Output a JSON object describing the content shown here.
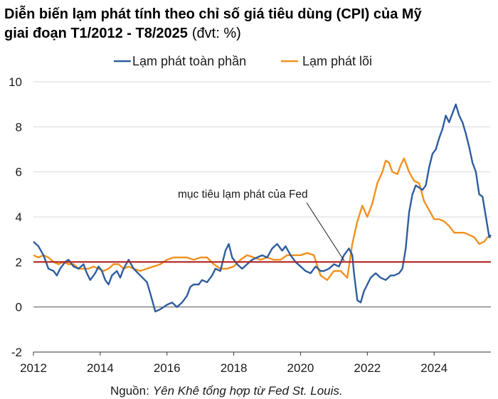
{
  "title_line1": "Diễn biến lạm phát tính theo chỉ số giá tiêu dùng (CPI) của Mỹ",
  "title_line2": "giai đoạn T1/2012 - T8/2025",
  "title_unit": "(đvt: %)",
  "source_prefix": "Nguồn:",
  "source_text": "Yên Khê tổng hợp từ Fed St. Louis.",
  "annotation": "mục tiêu lạm phát của Fed",
  "colors": {
    "headline": "#2e5d9e",
    "core": "#f0911e",
    "target": "#b22222",
    "grid": "#d9d9d9",
    "axis": "#333333"
  },
  "chart_data": {
    "type": "line",
    "xlim": [
      2012,
      2025.7
    ],
    "ylim": [
      -2,
      10
    ],
    "y_ticks": [
      -2,
      0,
      2,
      4,
      6,
      8,
      10
    ],
    "x_ticks": [
      2012,
      2014,
      2016,
      2018,
      2020,
      2022,
      2024
    ],
    "grid": "horizontal",
    "legend_placement": "top",
    "target_line": 2,
    "series": [
      {
        "name": "Lạm phát toàn phần",
        "color": "#2e5d9e",
        "points": [
          [
            2012.0,
            2.9
          ],
          [
            2012.15,
            2.7
          ],
          [
            2012.3,
            2.3
          ],
          [
            2012.45,
            1.7
          ],
          [
            2012.6,
            1.6
          ],
          [
            2012.7,
            1.4
          ],
          [
            2012.8,
            1.7
          ],
          [
            2012.95,
            2.0
          ],
          [
            2013.05,
            2.1
          ],
          [
            2013.2,
            1.8
          ],
          [
            2013.35,
            1.7
          ],
          [
            2013.5,
            1.9
          ],
          [
            2013.6,
            1.5
          ],
          [
            2013.7,
            1.2
          ],
          [
            2013.85,
            1.5
          ],
          [
            2013.95,
            1.8
          ],
          [
            2014.05,
            1.6
          ],
          [
            2014.15,
            1.2
          ],
          [
            2014.25,
            1.0
          ],
          [
            2014.35,
            1.4
          ],
          [
            2014.5,
            1.6
          ],
          [
            2014.6,
            1.3
          ],
          [
            2014.7,
            1.7
          ],
          [
            2014.85,
            2.1
          ],
          [
            2015.0,
            1.7
          ],
          [
            2015.2,
            1.4
          ],
          [
            2015.4,
            1.1
          ],
          [
            2015.5,
            0.6
          ],
          [
            2015.65,
            -0.2
          ],
          [
            2015.8,
            -0.1
          ],
          [
            2016.0,
            0.1
          ],
          [
            2016.15,
            0.2
          ],
          [
            2016.3,
            0.0
          ],
          [
            2016.45,
            0.2
          ],
          [
            2016.6,
            0.5
          ],
          [
            2016.7,
            0.9
          ],
          [
            2016.8,
            1.0
          ],
          [
            2016.95,
            1.0
          ],
          [
            2017.05,
            1.2
          ],
          [
            2017.2,
            1.1
          ],
          [
            2017.35,
            1.4
          ],
          [
            2017.45,
            1.7
          ],
          [
            2017.6,
            1.6
          ],
          [
            2017.75,
            2.5
          ],
          [
            2017.85,
            2.8
          ],
          [
            2017.95,
            2.2
          ],
          [
            2018.1,
            1.9
          ],
          [
            2018.25,
            1.7
          ],
          [
            2018.4,
            1.9
          ],
          [
            2018.55,
            2.1
          ],
          [
            2018.7,
            2.2
          ],
          [
            2018.85,
            2.3
          ],
          [
            2019.0,
            2.2
          ],
          [
            2019.15,
            2.6
          ],
          [
            2019.3,
            2.8
          ],
          [
            2019.45,
            2.5
          ],
          [
            2019.55,
            2.7
          ],
          [
            2019.7,
            2.3
          ],
          [
            2019.85,
            2.0
          ],
          [
            2020.0,
            1.8
          ],
          [
            2020.15,
            1.6
          ],
          [
            2020.3,
            1.5
          ],
          [
            2020.45,
            1.8
          ],
          [
            2020.6,
            1.6
          ],
          [
            2020.7,
            1.6
          ],
          [
            2020.85,
            1.7
          ],
          [
            2021.0,
            1.9
          ],
          [
            2021.15,
            1.8
          ],
          [
            2021.3,
            2.3
          ],
          [
            2021.45,
            2.6
          ],
          [
            2021.55,
            2.3
          ],
          [
            2021.6,
            1.5
          ],
          [
            2021.7,
            0.3
          ],
          [
            2021.8,
            0.2
          ],
          [
            2021.9,
            0.7
          ],
          [
            2022.0,
            1.0
          ],
          [
            2022.1,
            1.3
          ],
          [
            2022.25,
            1.5
          ],
          [
            2022.4,
            1.3
          ],
          [
            2022.55,
            1.2
          ],
          [
            2022.7,
            1.4
          ],
          [
            2022.8,
            1.4
          ],
          [
            2022.95,
            1.5
          ],
          [
            2023.05,
            1.7
          ],
          [
            2023.15,
            2.6
          ],
          [
            2023.25,
            4.2
          ],
          [
            2023.35,
            5.0
          ],
          [
            2023.45,
            5.4
          ],
          [
            2023.55,
            5.3
          ],
          [
            2023.65,
            5.2
          ],
          [
            2023.75,
            5.4
          ],
          [
            2023.85,
            6.2
          ],
          [
            2023.95,
            6.8
          ],
          [
            2024.05,
            7.0
          ],
          [
            2024.15,
            7.5
          ],
          [
            2024.25,
            7.9
          ],
          [
            2024.35,
            8.5
          ],
          [
            2024.45,
            8.2
          ],
          [
            2024.55,
            8.6
          ],
          [
            2024.65,
            9.0
          ],
          [
            2024.75,
            8.5
          ],
          [
            2024.85,
            8.2
          ],
          [
            2024.95,
            7.7
          ],
          [
            2025.05,
            7.1
          ],
          [
            2025.15,
            6.4
          ],
          [
            2025.25,
            6.0
          ],
          [
            2025.35,
            5.0
          ],
          [
            2025.45,
            4.9
          ],
          [
            2025.55,
            4.0
          ],
          [
            2025.65,
            3.1
          ],
          [
            2025.7,
            3.2
          ]
        ]
      },
      {
        "name": "Lạm phát lõi",
        "color": "#f0911e",
        "points": [
          [
            2012.0,
            2.3
          ],
          [
            2012.15,
            2.2
          ],
          [
            2012.3,
            2.3
          ],
          [
            2012.45,
            2.2
          ],
          [
            2012.6,
            2.0
          ],
          [
            2012.75,
            1.9
          ],
          [
            2012.9,
            2.0
          ],
          [
            2013.05,
            1.9
          ],
          [
            2013.2,
            1.9
          ],
          [
            2013.35,
            1.7
          ],
          [
            2013.5,
            1.7
          ],
          [
            2013.65,
            1.7
          ],
          [
            2013.8,
            1.8
          ],
          [
            2013.95,
            1.7
          ],
          [
            2014.1,
            1.6
          ],
          [
            2014.25,
            1.7
          ],
          [
            2014.4,
            1.9
          ],
          [
            2014.55,
            1.9
          ],
          [
            2014.7,
            1.7
          ],
          [
            2014.85,
            1.8
          ],
          [
            2015.0,
            1.7
          ],
          [
            2015.2,
            1.6
          ],
          [
            2015.4,
            1.7
          ],
          [
            2015.6,
            1.8
          ],
          [
            2015.8,
            1.9
          ],
          [
            2016.0,
            2.1
          ],
          [
            2016.2,
            2.2
          ],
          [
            2016.4,
            2.2
          ],
          [
            2016.6,
            2.2
          ],
          [
            2016.8,
            2.1
          ],
          [
            2017.0,
            2.2
          ],
          [
            2017.2,
            2.2
          ],
          [
            2017.4,
            1.9
          ],
          [
            2017.6,
            1.7
          ],
          [
            2017.8,
            1.7
          ],
          [
            2018.0,
            1.8
          ],
          [
            2018.2,
            2.1
          ],
          [
            2018.4,
            2.3
          ],
          [
            2018.6,
            2.2
          ],
          [
            2018.8,
            2.1
          ],
          [
            2019.0,
            2.2
          ],
          [
            2019.2,
            2.1
          ],
          [
            2019.4,
            2.1
          ],
          [
            2019.6,
            2.3
          ],
          [
            2019.8,
            2.3
          ],
          [
            2020.0,
            2.3
          ],
          [
            2020.2,
            2.4
          ],
          [
            2020.4,
            2.3
          ],
          [
            2020.6,
            1.4
          ],
          [
            2020.8,
            1.2
          ],
          [
            2021.0,
            1.6
          ],
          [
            2021.2,
            1.6
          ],
          [
            2021.4,
            1.3
          ],
          [
            2021.55,
            2.8
          ],
          [
            2021.7,
            3.8
          ],
          [
            2021.85,
            4.5
          ],
          [
            2022.0,
            4.0
          ],
          [
            2022.15,
            4.6
          ],
          [
            2022.3,
            5.5
          ],
          [
            2022.45,
            6.0
          ],
          [
            2022.55,
            6.5
          ],
          [
            2022.65,
            6.4
          ],
          [
            2022.75,
            6.0
          ],
          [
            2022.9,
            5.9
          ],
          [
            2023.0,
            6.3
          ],
          [
            2023.1,
            6.6
          ],
          [
            2023.25,
            6.0
          ],
          [
            2023.4,
            5.6
          ],
          [
            2023.55,
            5.5
          ],
          [
            2023.7,
            4.7
          ],
          [
            2023.85,
            4.3
          ],
          [
            2024.0,
            3.9
          ],
          [
            2024.15,
            3.9
          ],
          [
            2024.3,
            3.8
          ],
          [
            2024.45,
            3.6
          ],
          [
            2024.6,
            3.3
          ],
          [
            2024.75,
            3.3
          ],
          [
            2024.9,
            3.3
          ],
          [
            2025.05,
            3.2
          ],
          [
            2025.2,
            3.1
          ],
          [
            2025.35,
            2.8
          ],
          [
            2025.5,
            2.9
          ],
          [
            2025.6,
            3.1
          ],
          [
            2025.7,
            3.1
          ]
        ]
      }
    ]
  }
}
